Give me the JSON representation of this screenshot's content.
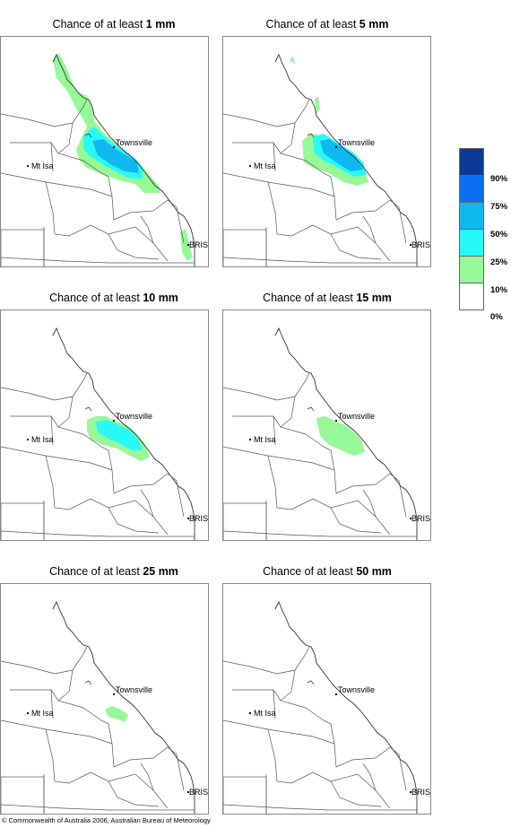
{
  "panels": [
    {
      "title_prefix": "Chance of at least ",
      "amount": "1 mm",
      "level": "1mm"
    },
    {
      "title_prefix": "Chance of at least ",
      "amount": "5 mm",
      "level": "5mm"
    },
    {
      "title_prefix": "Chance of at least ",
      "amount": "10 mm",
      "level": "10mm"
    },
    {
      "title_prefix": "Chance of at least ",
      "amount": "15 mm",
      "level": "15mm"
    },
    {
      "title_prefix": "Chance of at least ",
      "amount": "25 mm",
      "level": "25mm"
    },
    {
      "title_prefix": "Chance of at least ",
      "amount": "50 mm",
      "level": "50mm"
    }
  ],
  "places": {
    "townsville": "Townsville",
    "mt_isa": "Mt Isa",
    "bris": "BRIS"
  },
  "legend": {
    "labels": [
      "90%",
      "75%",
      "50%",
      "25%",
      "10%",
      "0%"
    ],
    "colors": [
      "#0a3a96",
      "#0a6ef0",
      "#10b8f0",
      "#28f8f8",
      "#96f896",
      "#ffffff"
    ]
  },
  "copyright": "© Commonwealth of Australia 2006, Australian Bureau of Meteorology"
}
